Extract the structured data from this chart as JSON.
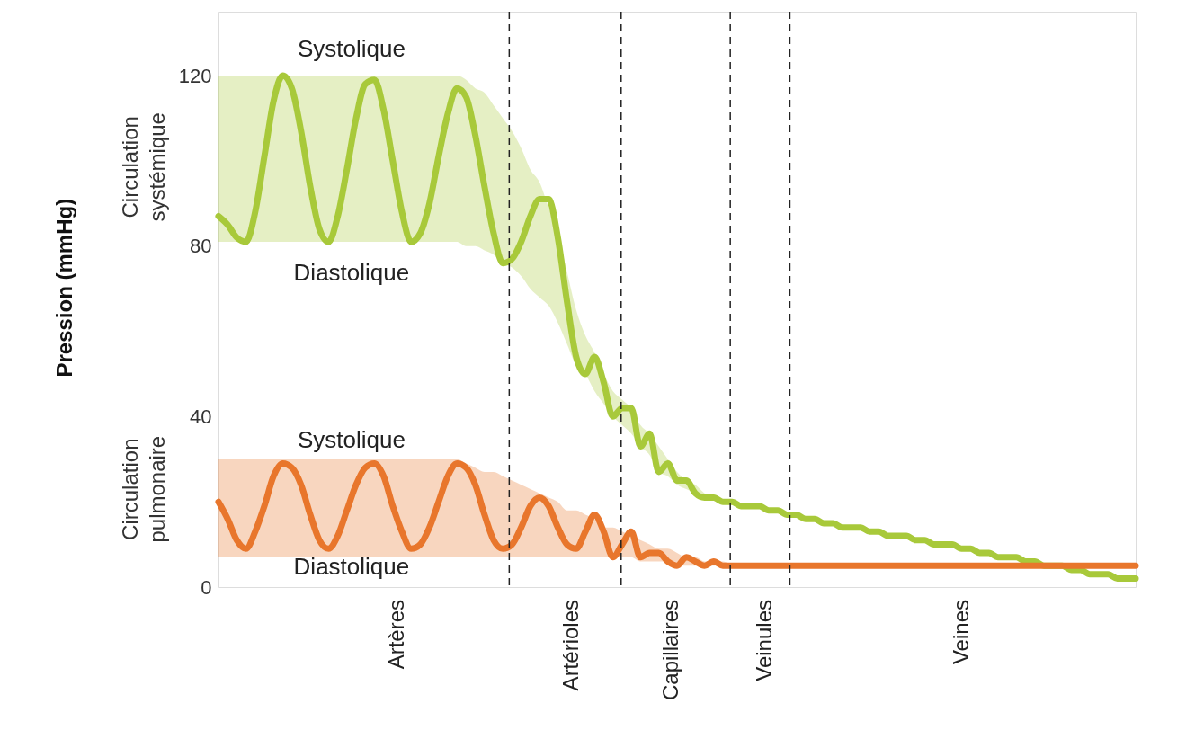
{
  "chart_data": {
    "type": "line",
    "ylabel": "Pression (mmHg)",
    "categories": [
      null,
      null,
      null,
      null,
      null,
      null,
      null,
      null,
      null,
      null,
      null,
      null,
      null,
      null,
      null,
      null,
      null,
      null,
      null,
      null,
      null,
      null,
      null,
      null,
      null,
      null,
      null,
      null,
      null,
      null,
      null,
      null,
      null,
      null,
      null,
      null,
      null,
      null,
      null,
      null,
      null,
      null,
      null,
      null,
      null,
      null,
      null,
      null,
      null,
      null,
      null,
      null,
      null,
      null,
      null,
      null,
      null,
      null,
      null,
      null,
      null,
      null,
      null,
      null,
      null,
      null,
      null,
      null,
      null,
      null,
      null,
      null,
      null,
      null,
      null,
      null,
      null,
      null,
      null,
      null,
      null,
      null,
      null,
      null,
      null,
      null,
      null,
      null,
      null,
      null,
      null,
      null,
      null,
      null,
      null,
      null,
      null,
      null,
      null,
      null,
      null
    ],
    "ylim": [
      0,
      135
    ],
    "yticks": [
      0,
      40,
      80,
      120
    ],
    "grid": false,
    "series": [
      {
        "color": "#a8c93a",
        "values": [
          87,
          85,
          82,
          81,
          88,
          101,
          114,
          120,
          117,
          107,
          94,
          84,
          81,
          87,
          98,
          110,
          118,
          119,
          112,
          100,
          88,
          81,
          83,
          90,
          101,
          111,
          117,
          115,
          106,
          94,
          83,
          76,
          77,
          81,
          87,
          91,
          91,
          82,
          67,
          54,
          50,
          54,
          48,
          40,
          42,
          42,
          33,
          36,
          27,
          29,
          25,
          25,
          22,
          21,
          21,
          20,
          20,
          19,
          19,
          19,
          18,
          18,
          17,
          17,
          16,
          16,
          15,
          15,
          14,
          14,
          14,
          13,
          13,
          12,
          12,
          12,
          11,
          11,
          10,
          10,
          10,
          9,
          9,
          8,
          8,
          7,
          7,
          7,
          6,
          6,
          5,
          5,
          5,
          4,
          4,
          3,
          3,
          3,
          2,
          2,
          2
        ],
        "upper": [
          120,
          120,
          120,
          120,
          120,
          120,
          120,
          120,
          120,
          120,
          120,
          120,
          120,
          120,
          120,
          120,
          120,
          120,
          120,
          120,
          120,
          120,
          120,
          120,
          120,
          120,
          120,
          119,
          117,
          116,
          113,
          110,
          107,
          103,
          98,
          95,
          89,
          83,
          74,
          65,
          59,
          55,
          50,
          46,
          44,
          42,
          38,
          36,
          33,
          30,
          27,
          25,
          24,
          22,
          21,
          20,
          20,
          null,
          null,
          null,
          null,
          null,
          null,
          null,
          null,
          null,
          null,
          null,
          null,
          null,
          null,
          null,
          null,
          null,
          null,
          null,
          null,
          null,
          null,
          null,
          null,
          null,
          null,
          null,
          null,
          null,
          null,
          null,
          null,
          null,
          null,
          null,
          null,
          null,
          null,
          null,
          null,
          null,
          null,
          null,
          null
        ],
        "lower": [
          81,
          81,
          81,
          81,
          81,
          81,
          81,
          81,
          81,
          81,
          81,
          81,
          81,
          81,
          81,
          81,
          81,
          81,
          81,
          81,
          81,
          81,
          81,
          81,
          81,
          81,
          81,
          80,
          80,
          79,
          78,
          76,
          75,
          73,
          70,
          68,
          66,
          62,
          57,
          52,
          50,
          46,
          43,
          40,
          38,
          36,
          33,
          31,
          27,
          26,
          24,
          23,
          22,
          21,
          21,
          20,
          20,
          null,
          null,
          null,
          null,
          null,
          null,
          null,
          null,
          null,
          null,
          null,
          null,
          null,
          null,
          null,
          null,
          null,
          null,
          null,
          null,
          null,
          null,
          null,
          null,
          null,
          null,
          null,
          null,
          null,
          null,
          null,
          null,
          null,
          null,
          null,
          null,
          null,
          null,
          null,
          null,
          null,
          null,
          null,
          null
        ]
      },
      {
        "color": "#e8762c",
        "values": [
          20,
          16,
          11,
          9,
          13,
          19,
          26,
          29,
          28,
          24,
          17,
          11,
          9,
          12,
          18,
          24,
          28,
          29,
          26,
          19,
          13,
          9,
          10,
          14,
          20,
          26,
          29,
          28,
          24,
          17,
          11,
          9,
          10,
          14,
          19,
          21,
          19,
          14,
          10,
          9,
          13,
          17,
          13,
          7,
          10,
          13,
          7,
          8,
          8,
          6,
          5,
          7,
          6,
          5,
          6,
          5,
          5,
          5,
          5,
          5,
          5,
          5,
          5,
          5,
          5,
          5,
          5,
          5,
          5,
          5,
          5,
          5,
          5,
          5,
          5,
          5,
          5,
          5,
          5,
          5,
          5,
          5,
          5,
          5,
          5,
          5,
          5,
          5,
          5,
          5,
          5,
          5,
          5,
          5,
          5,
          5,
          5,
          5,
          5,
          5,
          5
        ],
        "upper": [
          30,
          30,
          30,
          30,
          30,
          30,
          30,
          30,
          30,
          30,
          30,
          30,
          30,
          30,
          30,
          30,
          30,
          30,
          30,
          30,
          30,
          30,
          30,
          30,
          30,
          30,
          30,
          29,
          28,
          27,
          27,
          26,
          25,
          24,
          23,
          22,
          21,
          20,
          18,
          18,
          17,
          16,
          14,
          14,
          13,
          12,
          11,
          10,
          9,
          9,
          8,
          7,
          7,
          6,
          6,
          6,
          5,
          null,
          null,
          null,
          null,
          null,
          null,
          null,
          null,
          null,
          null,
          null,
          null,
          null,
          null,
          null,
          null,
          null,
          null,
          null,
          null,
          null,
          null,
          null,
          null,
          null,
          null,
          null,
          null,
          null,
          null,
          null,
          null,
          null,
          null,
          null,
          null,
          null,
          null,
          null,
          null,
          null,
          null,
          null,
          null
        ],
        "lower": [
          7,
          7,
          7,
          7,
          7,
          7,
          7,
          7,
          7,
          7,
          7,
          7,
          7,
          7,
          7,
          7,
          7,
          7,
          7,
          7,
          7,
          7,
          7,
          7,
          7,
          7,
          7,
          7,
          7,
          7,
          7,
          7,
          7,
          7,
          7,
          7,
          7,
          7,
          7,
          7,
          7,
          7,
          7,
          7,
          7,
          7,
          6,
          6,
          6,
          6,
          5,
          5,
          5,
          5,
          5,
          5,
          5,
          null,
          null,
          null,
          null,
          null,
          null,
          null,
          null,
          null,
          null,
          null,
          null,
          null,
          null,
          null,
          null,
          null,
          null,
          null,
          null,
          null,
          null,
          null,
          null,
          null,
          null,
          null,
          null,
          null,
          null,
          null,
          null,
          null,
          null,
          null,
          null,
          null,
          null,
          null,
          null,
          null,
          null,
          null,
          null
        ]
      }
    ],
    "annotations": [
      "Systolique",
      "Diastolique",
      "Systolique",
      "Diastolique",
      "Circulation\nsystémique",
      "Circulation\npulmonaire",
      "Artères",
      "Artérioles",
      "Capillaires",
      "Veinules",
      "Veines"
    ],
    "line_style": "solid",
    "marker": "none"
  }
}
